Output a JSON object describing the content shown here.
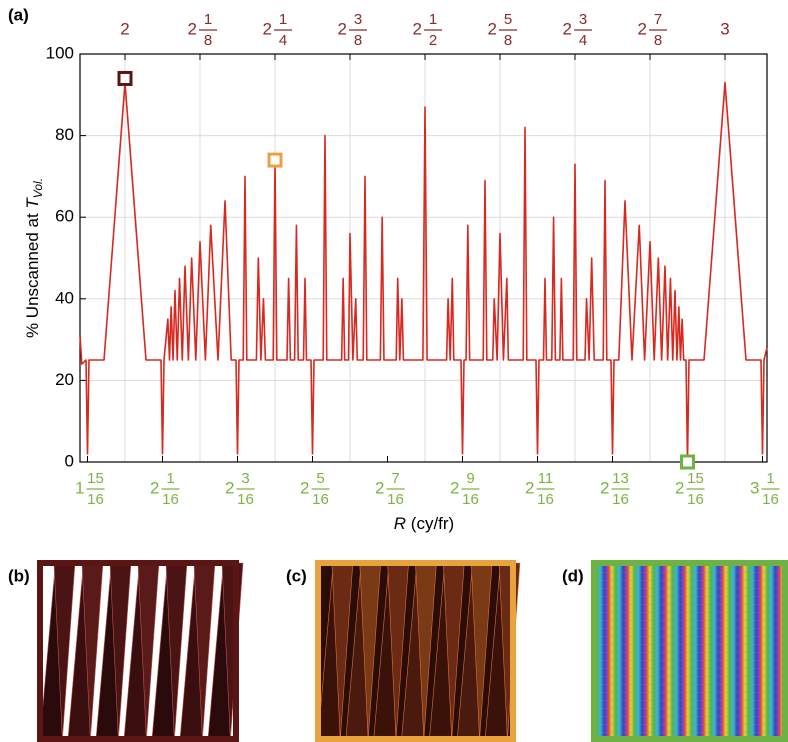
{
  "chart_data": {
    "type": "line",
    "panel_label": "(a)",
    "ylabel": {
      "text": "% Unscanned at ",
      "symbol": "T",
      "subscript": "Vol."
    },
    "xlabel": {
      "symbol": "R",
      "text": " (cy/fr)"
    },
    "color": "#d8281f",
    "xlim": [
      1.925,
      3.07
    ],
    "ylim": [
      0,
      100
    ],
    "yticks": [
      0,
      20,
      40,
      60,
      80,
      100
    ],
    "grid": true,
    "tick_color": "#7cb342",
    "x2_tick_color": "#8b2a2a",
    "xticks": [
      {
        "value": 1.9375,
        "label": {
          "whole": "1",
          "num": "15",
          "den": "16"
        }
      },
      {
        "value": 2.0625,
        "label": {
          "whole": "2",
          "num": "1",
          "den": "16"
        }
      },
      {
        "value": 2.1875,
        "label": {
          "whole": "2",
          "num": "3",
          "den": "16"
        }
      },
      {
        "value": 2.3125,
        "label": {
          "whole": "2",
          "num": "5",
          "den": "16"
        }
      },
      {
        "value": 2.4375,
        "label": {
          "whole": "2",
          "num": "7",
          "den": "16"
        }
      },
      {
        "value": 2.5625,
        "label": {
          "whole": "2",
          "num": "9",
          "den": "16"
        }
      },
      {
        "value": 2.6875,
        "label": {
          "whole": "2",
          "num": "11",
          "den": "16"
        }
      },
      {
        "value": 2.8125,
        "label": {
          "whole": "2",
          "num": "13",
          "den": "16"
        }
      },
      {
        "value": 2.9375,
        "label": {
          "whole": "2",
          "num": "15",
          "den": "16"
        }
      },
      {
        "value": 3.0625,
        "label": {
          "whole": "3",
          "num": "1",
          "den": "16"
        }
      }
    ],
    "x2ticks": [
      2,
      {
        "value": 2.125,
        "label": {
          "whole": "2",
          "num": "1",
          "den": "8"
        }
      },
      {
        "value": 2.25,
        "label": {
          "whole": "2",
          "num": "1",
          "den": "4"
        }
      },
      {
        "value": 2.375,
        "label": {
          "whole": "2",
          "num": "3",
          "den": "8"
        }
      },
      {
        "value": 2.5,
        "label": {
          "whole": "2",
          "num": "1",
          "den": "2"
        }
      },
      {
        "value": 2.625,
        "label": {
          "whole": "2",
          "num": "5",
          "den": "8"
        }
      },
      {
        "value": 2.75,
        "label": {
          "whole": "2",
          "num": "3",
          "den": "4"
        }
      },
      {
        "value": 2.875,
        "label": {
          "whole": "2",
          "num": "7",
          "den": "8"
        }
      },
      3
    ],
    "x": [
      1.925,
      1.928,
      1.935,
      1.9375,
      1.94,
      1.965,
      2,
      2.035,
      2.06,
      2.0625,
      2.065,
      2.0714,
      2.0742,
      2.0769,
      2.0801,
      2.0833,
      2.0871,
      2.0909,
      2.0955,
      2.1,
      2.1056,
      2.1111,
      2.118,
      2.125,
      2.134,
      2.1429,
      2.155,
      2.1667,
      2.177,
      2.185,
      2.1875,
      2.19,
      2.197,
      2.2,
      2.203,
      2.219,
      2.2222,
      2.2265,
      2.2308,
      2.234,
      2.247,
      2.25,
      2.253,
      2.27,
      2.2727,
      2.2757,
      2.2827,
      2.2857,
      2.2887,
      2.2975,
      2.3,
      2.3025,
      2.31,
      2.3125,
      2.315,
      2.3303,
      2.3333,
      2.3363,
      2.3611,
      2.3636,
      2.3661,
      2.3725,
      2.375,
      2.3798,
      2.3846,
      2.3871,
      2.397,
      2.4,
      2.403,
      2.4256,
      2.4286,
      2.4316,
      2.452,
      2.4545,
      2.458,
      2.4615,
      2.464,
      2.4965,
      2.5,
      2.5035,
      2.536,
      2.5385,
      2.542,
      2.5455,
      2.548,
      2.56,
      2.5625,
      2.565,
      2.5684,
      2.5714,
      2.5744,
      2.597,
      2.6,
      2.603,
      2.6129,
      2.6154,
      2.6202,
      2.625,
      2.6307,
      2.6364,
      2.6389,
      2.6637,
      2.6667,
      2.6697,
      2.685,
      2.6875,
      2.69,
      2.6975,
      2.7,
      2.7025,
      2.7113,
      2.7143,
      2.7173,
      2.7248,
      2.7273,
      2.7298,
      2.747,
      2.75,
      2.753,
      2.7667,
      2.7692,
      2.7735,
      2.7778,
      2.782,
      2.797,
      2.8,
      2.803,
      2.81,
      2.8125,
      2.815,
      2.823,
      2.8333,
      2.845,
      2.8571,
      2.866,
      2.875,
      2.882,
      2.8889,
      2.8944,
      2.9,
      2.9045,
      2.9091,
      2.9129,
      2.9167,
      2.9199,
      2.9231,
      2.9258,
      2.9286,
      2.9311,
      2.935,
      2.9375,
      2.94,
      2.965,
      3,
      3.035,
      3.06,
      3.0625,
      3.065,
      3.07
    ],
    "values": [
      31,
      24,
      25,
      2,
      25,
      25,
      93,
      25,
      25,
      2,
      25,
      35,
      25,
      38,
      25,
      42,
      25,
      45,
      25,
      48,
      25,
      50,
      25,
      54,
      25,
      58,
      25,
      64,
      25,
      25,
      2,
      25,
      25,
      70,
      25,
      25,
      50,
      25,
      40,
      25,
      25,
      74,
      25,
      25,
      45,
      25,
      25,
      58,
      25,
      25,
      45,
      25,
      25,
      2,
      25,
      25,
      80,
      25,
      25,
      45,
      25,
      25,
      56,
      25,
      40,
      25,
      25,
      70,
      25,
      25,
      60,
      25,
      25,
      45,
      25,
      40,
      25,
      25,
      87,
      25,
      25,
      40,
      25,
      45,
      25,
      25,
      2,
      25,
      25,
      58,
      25,
      25,
      69,
      25,
      25,
      40,
      25,
      56,
      25,
      45,
      25,
      25,
      82,
      25,
      25,
      2,
      25,
      25,
      45,
      25,
      25,
      60,
      25,
      25,
      45,
      25,
      25,
      73,
      25,
      25,
      40,
      25,
      50,
      25,
      25,
      69,
      25,
      25,
      2,
      25,
      25,
      64,
      25,
      58,
      25,
      54,
      25,
      50,
      25,
      48,
      25,
      45,
      25,
      42,
      25,
      38,
      25,
      35,
      25,
      25,
      0,
      25,
      25,
      93,
      25,
      25,
      2,
      25,
      28
    ],
    "highlights": [
      {
        "x": 2,
        "y": 94,
        "color": "#5c1515"
      },
      {
        "x": 2.25,
        "y": 74,
        "color": "#e8a33d"
      },
      {
        "x": 2.9375,
        "y": 0,
        "color": "#6db344"
      }
    ],
    "panels": [
      {
        "label": "(b)",
        "color": "#5c1515"
      },
      {
        "label": "(c)",
        "color": "#e8a33d"
      },
      {
        "label": "(d)",
        "color": "#6db344"
      }
    ]
  }
}
